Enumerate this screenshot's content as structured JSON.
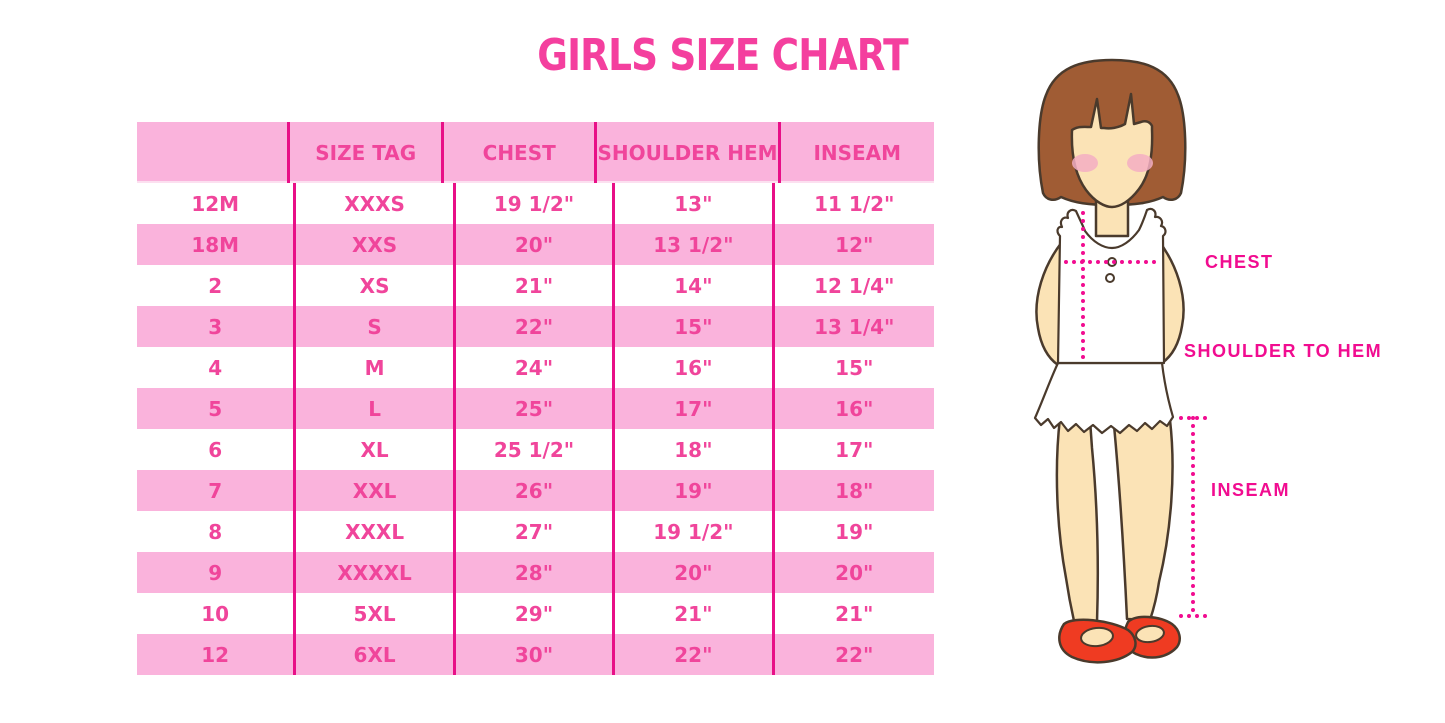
{
  "title": "GIRLS SIZE CHART",
  "chart_data": {
    "type": "table",
    "title": "GIRLS SIZE CHART",
    "columns": [
      "",
      "SIZE TAG",
      "CHEST",
      "SHOULDER HEM",
      "INSEAM"
    ],
    "rows": [
      [
        "12M",
        "XXXS",
        "19 1/2\"",
        "13\"",
        "11 1/2\""
      ],
      [
        "18M",
        "XXS",
        "20\"",
        "13 1/2\"",
        "12\""
      ],
      [
        "2",
        "XS",
        "21\"",
        "14\"",
        "12 1/4\""
      ],
      [
        "3",
        "S",
        "22\"",
        "15\"",
        "13 1/4\""
      ],
      [
        "4",
        "M",
        "24\"",
        "16\"",
        "15\""
      ],
      [
        "5",
        "L",
        "25\"",
        "17\"",
        "16\""
      ],
      [
        "6",
        "XL",
        "25 1/2\"",
        "18\"",
        "17\""
      ],
      [
        "7",
        "XXL",
        "26\"",
        "19\"",
        "18\""
      ],
      [
        "8",
        "XXXL",
        "27\"",
        "19 1/2\"",
        "19\""
      ],
      [
        "9",
        "XXXXL",
        "28\"",
        "20\"",
        "20\""
      ],
      [
        "10",
        "5XL",
        "29\"",
        "21\"",
        "21\""
      ],
      [
        "12",
        "6XL",
        "30\"",
        "22\"",
        "22\""
      ]
    ],
    "row_striping": "alternating white and pink, header pink"
  },
  "diagram_labels": {
    "chest": "CHEST",
    "shoulder_to_hem": "SHOULDER TO HEM",
    "inseam": "INSEAM"
  },
  "colors": {
    "title_pink": "#F43F9E",
    "table_text_pink": "#F0459B",
    "row_pink_bg": "#FAB3DC",
    "column_line_magenta": "#E80F87",
    "measure_line_magenta": "#F10C90",
    "hair_brown": "#A05C34",
    "skin": "#FBE3B6",
    "blush_pink": "#F5AFC3",
    "shoe_red": "#EF3B22"
  }
}
